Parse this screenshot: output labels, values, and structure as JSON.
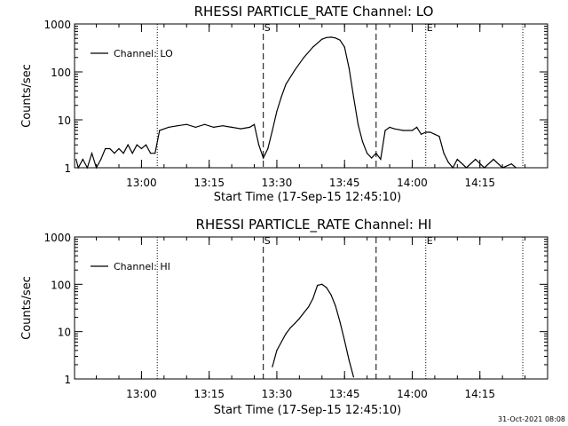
{
  "chart_data": [
    {
      "type": "line",
      "title": "RHESSI PARTICLE_RATE Channel: LO",
      "xlabel": "Start Time (17-Sep-15 12:45:10)",
      "ylabel": "Counts/sec",
      "y_scale": "log",
      "ylim": [
        1,
        1000
      ],
      "xlim": [
        "12:45:10",
        "14:30:00"
      ],
      "x_ticks": [
        "13:00",
        "13:15",
        "13:30",
        "13:45",
        "14:00",
        "14:15"
      ],
      "y_ticks": [
        "1",
        "10",
        "100",
        "1000"
      ],
      "grid": false,
      "legend_position": "top-left",
      "markers": [
        {
          "label": "S",
          "x": "13:27:00",
          "style": "dashed"
        },
        {
          "label": "E",
          "x": "14:03:00",
          "style": "dotted"
        }
      ],
      "vlines": [
        {
          "x": "13:03:30",
          "style": "dotted"
        },
        {
          "x": "13:27:00",
          "style": "dashed"
        },
        {
          "x": "13:52:00",
          "style": "dashed"
        },
        {
          "x": "14:03:00",
          "style": "dotted"
        },
        {
          "x": "14:24:30",
          "style": "dotted"
        }
      ],
      "series": [
        {
          "name": "Channel: LO",
          "x": [
            "12:45:30",
            "12:46:00",
            "12:47:00",
            "12:48:00",
            "12:49:00",
            "12:50:00",
            "12:51:00",
            "12:52:00",
            "12:53:00",
            "12:54:00",
            "12:55:00",
            "12:56:00",
            "12:57:00",
            "12:58:00",
            "12:59:00",
            "13:00:00",
            "13:01:00",
            "13:02:00",
            "13:03:00",
            "13:04:00",
            "13:06:00",
            "13:08:00",
            "13:10:00",
            "13:12:00",
            "13:14:00",
            "13:16:00",
            "13:18:00",
            "13:20:00",
            "13:22:00",
            "13:24:00",
            "13:25:00",
            "13:26:00",
            "13:27:00",
            "13:28:00",
            "13:29:00",
            "13:30:00",
            "13:31:00",
            "13:32:00",
            "13:34:00",
            "13:36:00",
            "13:38:00",
            "13:40:00",
            "13:41:00",
            "13:42:00",
            "13:43:00",
            "13:44:00",
            "13:45:00",
            "13:46:00",
            "13:47:00",
            "13:48:00",
            "13:49:00",
            "13:50:00",
            "13:51:00",
            "13:52:00",
            "13:53:00",
            "13:54:00",
            "13:55:00",
            "13:56:00",
            "13:58:00",
            "14:00:00",
            "14:01:00",
            "14:02:00",
            "14:03:00",
            "14:04:00",
            "14:05:00",
            "14:06:00",
            "14:07:00",
            "14:08:00",
            "14:09:00",
            "14:10:00",
            "14:12:00",
            "14:14:00",
            "14:16:00",
            "14:18:00",
            "14:20:00",
            "14:22:00",
            "14:23:00"
          ],
          "y": [
            1.5,
            1,
            1.5,
            1,
            2,
            1,
            1.5,
            2.5,
            2.5,
            2,
            2.5,
            2,
            3,
            2,
            3,
            2.5,
            3,
            2,
            2,
            6,
            7,
            7.5,
            8,
            7,
            8,
            7,
            7.5,
            7,
            6.5,
            7,
            8,
            3,
            1.6,
            2.5,
            6,
            15,
            30,
            55,
            110,
            200,
            330,
            480,
            520,
            530,
            510,
            460,
            330,
            120,
            30,
            8,
            3.5,
            2,
            1.6,
            2,
            1.5,
            6,
            7,
            6.5,
            6,
            6,
            7,
            5,
            5.5,
            5.5,
            5,
            4.5,
            2,
            1.3,
            1,
            1.5,
            1,
            1.5,
            1,
            1.5,
            1,
            1.2,
            1
          ]
        }
      ]
    },
    {
      "type": "line",
      "title": "RHESSI PARTICLE_RATE Channel: HI",
      "xlabel": "Start Time (17-Sep-15 12:45:10)",
      "ylabel": "Counts/sec",
      "y_scale": "log",
      "ylim": [
        1,
        1000
      ],
      "xlim": [
        "12:45:10",
        "14:30:00"
      ],
      "x_ticks": [
        "13:00",
        "13:15",
        "13:30",
        "13:45",
        "14:00",
        "14:15"
      ],
      "y_ticks": [
        "1",
        "10",
        "100",
        "1000"
      ],
      "grid": false,
      "legend_position": "top-left",
      "markers": [
        {
          "label": "S",
          "x": "13:27:00",
          "style": "dashed"
        },
        {
          "label": "E",
          "x": "14:03:00",
          "style": "dotted"
        }
      ],
      "vlines": [
        {
          "x": "13:03:30",
          "style": "dotted"
        },
        {
          "x": "13:27:00",
          "style": "dashed"
        },
        {
          "x": "13:52:00",
          "style": "dashed"
        },
        {
          "x": "14:03:00",
          "style": "dotted"
        },
        {
          "x": "14:24:30",
          "style": "dotted"
        }
      ],
      "series": [
        {
          "name": "Channel: HI",
          "x": [
            "13:29:00",
            "13:30:00",
            "13:31:00",
            "13:32:00",
            "13:33:00",
            "13:34:00",
            "13:35:00",
            "13:36:00",
            "13:37:00",
            "13:38:00",
            "13:39:00",
            "13:40:00",
            "13:41:00",
            "13:42:00",
            "13:43:00",
            "13:44:00",
            "13:45:00",
            "13:46:00",
            "13:47:00"
          ],
          "y": [
            1.8,
            4,
            6,
            9,
            12,
            15,
            19,
            25,
            33,
            50,
            95,
            100,
            85,
            60,
            35,
            16,
            6.5,
            2.5,
            1.1
          ]
        }
      ]
    }
  ],
  "footer": {
    "timestamp": "31-Oct-2021 08:08"
  },
  "colors": {
    "background": "#ffffff",
    "ink": "#000000"
  }
}
